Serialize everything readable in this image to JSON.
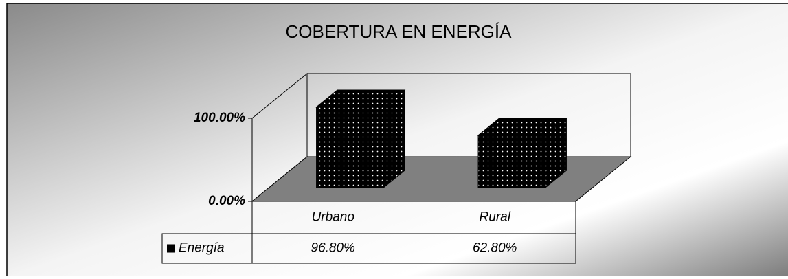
{
  "chart_data": {
    "type": "bar3d",
    "title": "COBERTURA EN ENERGÍA",
    "categories": [
      "Urbano",
      "Rural"
    ],
    "series": [
      {
        "name": "Energía",
        "color": "#000000",
        "values": [
          96.8,
          62.8
        ],
        "value_labels": [
          "96.80%",
          "62.80%"
        ]
      }
    ],
    "ylim": [
      0,
      100
    ],
    "yticks": [
      {
        "value": 0,
        "label": "0.00%"
      },
      {
        "value": 100,
        "label": "100.00%"
      }
    ],
    "legend": "table"
  }
}
